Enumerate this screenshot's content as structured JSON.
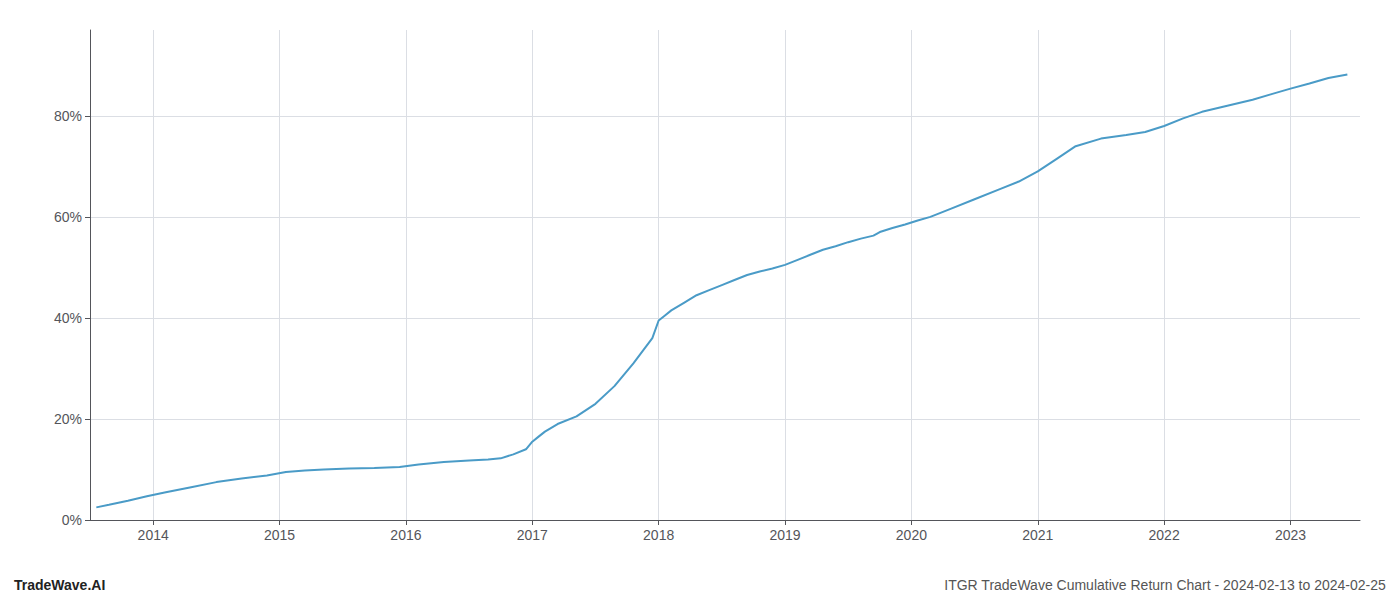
{
  "chart_data": {
    "type": "line",
    "x": [
      2013.55,
      2013.65,
      2013.8,
      2013.95,
      2014.1,
      2014.3,
      2014.5,
      2014.7,
      2014.9,
      2015.05,
      2015.2,
      2015.35,
      2015.55,
      2015.75,
      2015.95,
      2016.1,
      2016.3,
      2016.5,
      2016.65,
      2016.75,
      2016.85,
      2016.95,
      2017.0,
      2017.05,
      2017.1,
      2017.2,
      2017.35,
      2017.5,
      2017.65,
      2017.8,
      2017.95,
      2018.0,
      2018.05,
      2018.1,
      2018.2,
      2018.3,
      2018.4,
      2018.5,
      2018.6,
      2018.7,
      2018.8,
      2018.9,
      2019.0,
      2019.1,
      2019.2,
      2019.3,
      2019.4,
      2019.5,
      2019.6,
      2019.7,
      2019.75,
      2019.85,
      2019.95,
      2020.05,
      2020.15,
      2020.3,
      2020.5,
      2020.7,
      2020.85,
      2021.0,
      2021.15,
      2021.3,
      2021.5,
      2021.7,
      2021.85,
      2022.0,
      2022.15,
      2022.3,
      2022.5,
      2022.7,
      2022.85,
      2023.0,
      2023.15,
      2023.3,
      2023.45
    ],
    "values": [
      0.025,
      0.03,
      0.038,
      0.047,
      0.055,
      0.065,
      0.075,
      0.082,
      0.088,
      0.095,
      0.098,
      0.1,
      0.102,
      0.103,
      0.105,
      0.11,
      0.115,
      0.118,
      0.12,
      0.122,
      0.13,
      0.14,
      0.155,
      0.165,
      0.175,
      0.19,
      0.205,
      0.23,
      0.265,
      0.31,
      0.36,
      0.395,
      0.405,
      0.415,
      0.43,
      0.445,
      0.455,
      0.465,
      0.475,
      0.485,
      0.492,
      0.498,
      0.505,
      0.515,
      0.525,
      0.535,
      0.542,
      0.55,
      0.557,
      0.563,
      0.57,
      0.578,
      0.585,
      0.593,
      0.6,
      0.615,
      0.635,
      0.655,
      0.67,
      0.69,
      0.715,
      0.74,
      0.755,
      0.762,
      0.768,
      0.78,
      0.795,
      0.808,
      0.82,
      0.832,
      0.843,
      0.854,
      0.864,
      0.875,
      0.882
    ],
    "color": "#4a9bc7",
    "xlim": [
      2013.5,
      2023.55
    ],
    "xticks": [
      2014,
      2015,
      2016,
      2017,
      2018,
      2019,
      2020,
      2021,
      2022,
      2023
    ],
    "ylim": [
      0.0,
      0.97
    ],
    "yticks": [
      {
        "value": 0.0,
        "label": "0%"
      },
      {
        "value": 0.2,
        "label": "20%"
      },
      {
        "value": 0.4,
        "label": "40%"
      },
      {
        "value": 0.6,
        "label": "60%"
      },
      {
        "value": 0.8,
        "label": "80%"
      }
    ],
    "grid": true,
    "annotations": [
      "TradeWave.AI",
      "ITGR TradeWave Cumulative Return Chart - 2024-02-13 to 2024-02-25"
    ]
  }
}
